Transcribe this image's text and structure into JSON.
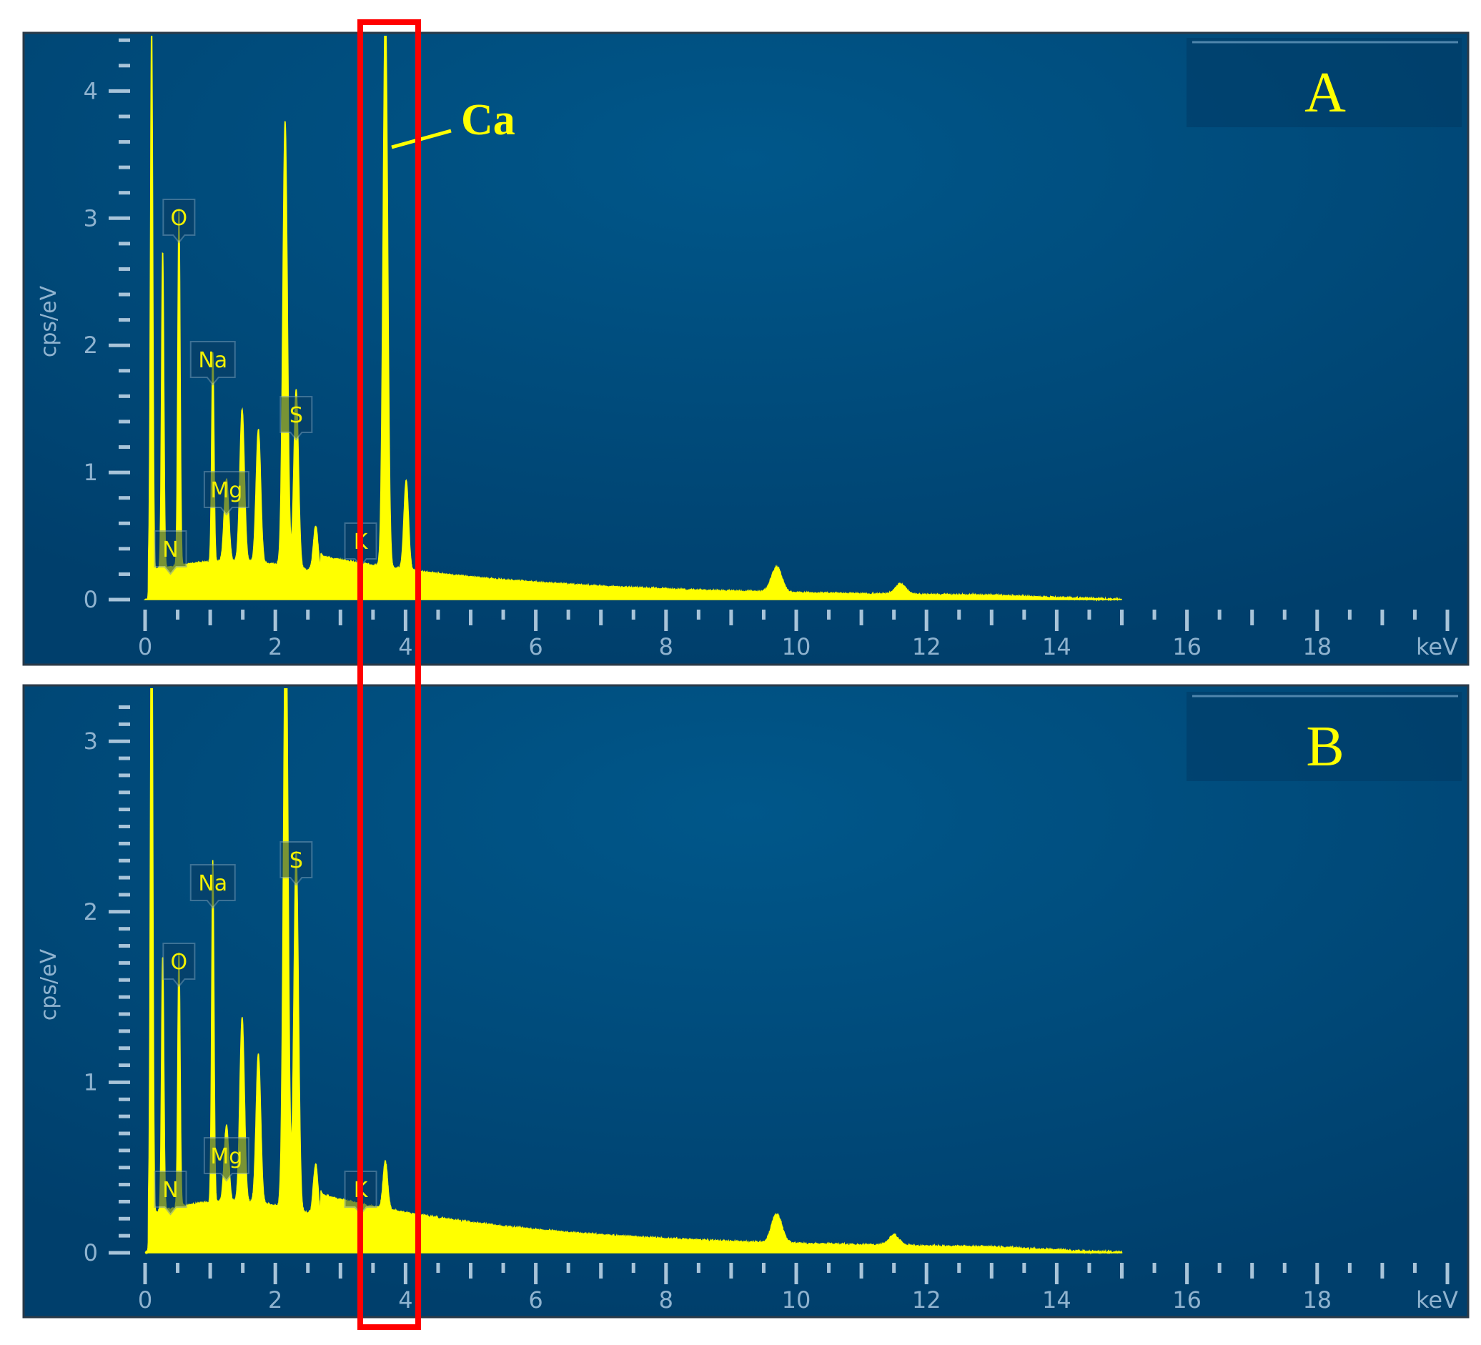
{
  "colors": {
    "background": "#004470",
    "spectrum": "#ffff00",
    "axis": "#8fb3cf",
    "highlight_box": "#ff0000"
  },
  "annotation": {
    "ca_label": "Ca"
  },
  "chart_data": [
    {
      "type": "area",
      "panel_label": "A",
      "xlabel": "keV",
      "ylabel": "cps/eV",
      "xlim": [
        0,
        20
      ],
      "ylim": [
        0,
        4.4
      ],
      "x_ticks": [
        "0",
        "2",
        "4",
        "6",
        "8",
        "10",
        "12",
        "14",
        "16",
        "18"
      ],
      "y_ticks": [
        "0",
        "1",
        "2",
        "3",
        "4"
      ],
      "grid": false,
      "spectrum_end_keV": 15,
      "peaks": [
        {
          "energy": 0.1,
          "height": 4.3
        },
        {
          "energy": 0.27,
          "height": 2.5
        },
        {
          "energy": 0.52,
          "height": 2.8
        },
        {
          "energy": 1.04,
          "height": 1.65
        },
        {
          "energy": 1.25,
          "height": 0.65
        },
        {
          "energy": 1.49,
          "height": 1.2
        },
        {
          "energy": 1.74,
          "height": 1.05
        },
        {
          "energy": 2.15,
          "height": 3.5
        },
        {
          "energy": 2.32,
          "height": 1.4
        },
        {
          "energy": 2.62,
          "height": 0.36
        },
        {
          "energy": 3.69,
          "height": 4.45
        },
        {
          "energy": 4.01,
          "height": 0.7
        },
        {
          "energy": 9.7,
          "height": 0.2
        },
        {
          "energy": 11.6,
          "height": 0.08
        }
      ],
      "element_labels": [
        {
          "text": "O",
          "energy": 0.52
        },
        {
          "text": "Na",
          "energy": 1.04
        },
        {
          "text": "Mg",
          "energy": 1.25
        },
        {
          "text": "S",
          "energy": 2.32
        },
        {
          "text": "N",
          "energy": 0.39
        },
        {
          "text": "K",
          "energy": 3.31
        }
      ]
    },
    {
      "type": "area",
      "panel_label": "B",
      "xlabel": "keV",
      "ylabel": "cps/eV",
      "xlim": [
        0,
        20
      ],
      "ylim": [
        0,
        3.4
      ],
      "x_ticks": [
        "0",
        "2",
        "4",
        "6",
        "8",
        "10",
        "12",
        "14",
        "16",
        "18"
      ],
      "y_ticks": [
        "0",
        "1",
        "2",
        "3"
      ],
      "grid": false,
      "spectrum_end_keV": 15,
      "peaks": [
        {
          "energy": 0.1,
          "height": 4.0
        },
        {
          "energy": 0.27,
          "height": 1.5
        },
        {
          "energy": 0.52,
          "height": 1.5
        },
        {
          "energy": 1.04,
          "height": 2.0
        },
        {
          "energy": 1.25,
          "height": 0.45
        },
        {
          "energy": 1.49,
          "height": 1.08
        },
        {
          "energy": 1.74,
          "height": 0.88
        },
        {
          "energy": 2.16,
          "height": 3.6
        },
        {
          "energy": 2.32,
          "height": 2.1
        },
        {
          "energy": 2.62,
          "height": 0.3
        },
        {
          "energy": 3.69,
          "height": 0.28
        },
        {
          "energy": 9.7,
          "height": 0.17
        },
        {
          "energy": 11.5,
          "height": 0.06
        }
      ],
      "element_labels": [
        {
          "text": "S",
          "energy": 2.32
        },
        {
          "text": "Na",
          "energy": 1.04
        },
        {
          "text": "O",
          "energy": 0.52
        },
        {
          "text": "Mg",
          "energy": 1.25
        },
        {
          "text": "N",
          "energy": 0.39
        },
        {
          "text": "K",
          "energy": 3.31
        }
      ]
    }
  ]
}
